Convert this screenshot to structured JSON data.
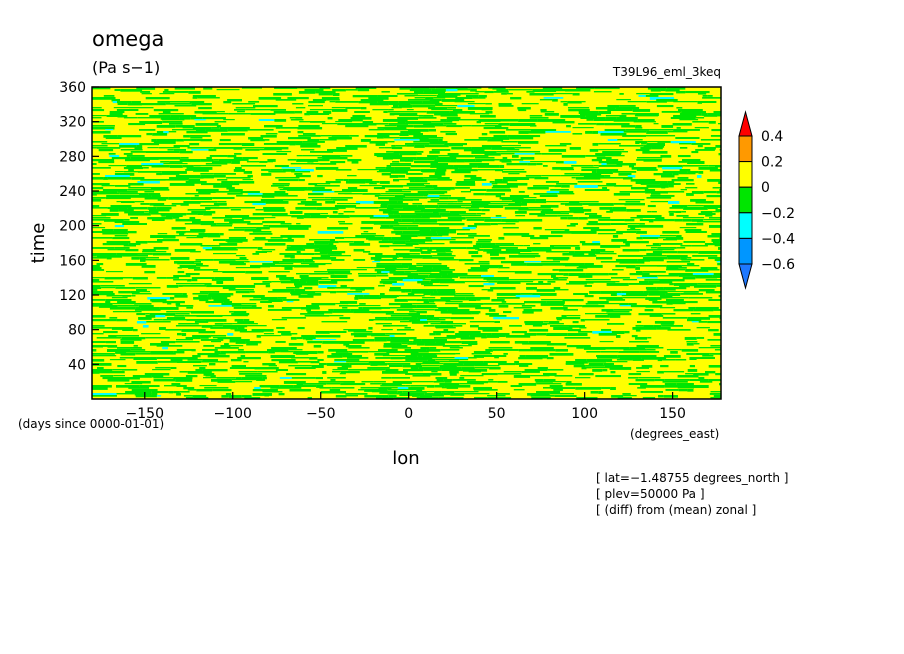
{
  "chart_data": {
    "type": "heatmap",
    "title": "omega",
    "units": "(Pa s−1)",
    "run_label": "T39L96_eml_3keq",
    "xlabel": "lon",
    "ylabel": "time",
    "x_units": "(degrees_east)",
    "y_units": "(days since 0000-01-01)",
    "xlim": [
      -180,
      177.5
    ],
    "ylim": [
      0,
      360
    ],
    "x_ticks": [
      -150,
      -100,
      -50,
      0,
      50,
      100,
      150
    ],
    "y_ticks": [
      40,
      80,
      120,
      160,
      200,
      240,
      280,
      320,
      360
    ],
    "colorbar": {
      "levels": [
        -0.6,
        -0.4,
        -0.2,
        0,
        0.2,
        0.4
      ],
      "level_labels": [
        "−0.6",
        "−0.4",
        "−0.2",
        "0",
        "0.2",
        "0.4"
      ],
      "colors": [
        "#1e78ff",
        "#0096ff",
        "#00ffff",
        "#00e600",
        "#ffff00",
        "#ff9900",
        "#ff0000"
      ]
    },
    "annotations": [
      "[ lat=−1.48755 degrees_north ]",
      "[ plev=50000 Pa ]",
      "[ (diff) from (mean) zonal ]"
    ],
    "pattern": {
      "dominant_colors": [
        "#ffff00",
        "#00e600"
      ],
      "green_band_center_lon": 0,
      "green_band_halfwidth_lon": 20
    }
  }
}
